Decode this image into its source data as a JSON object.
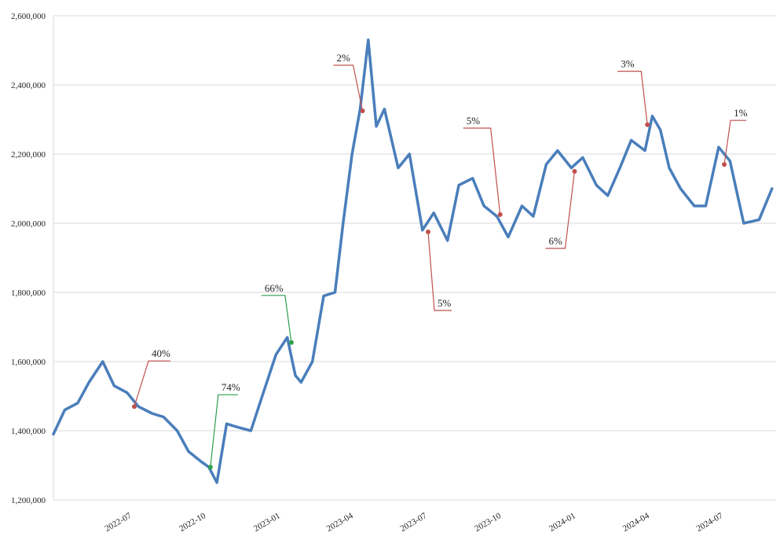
{
  "chart_data": {
    "type": "line",
    "title": "",
    "xlabel": "",
    "ylabel": "",
    "ylim": [
      1200000,
      2600000
    ],
    "y_ticks": [
      1200000,
      1400000,
      1600000,
      1800000,
      2000000,
      2200000,
      2400000,
      2600000
    ],
    "y_tick_labels": [
      "1,200,000",
      "1,400,000",
      "1,600,000",
      "1,800,000",
      "2,000,000",
      "2,200,000",
      "2,400,000",
      "2,600,000"
    ],
    "x_ticks": [
      "2022-07",
      "2022-10",
      "2023-01",
      "2023-04",
      "2023-07",
      "2023-10",
      "2024-01",
      "2024-04",
      "2024-07"
    ],
    "grid": true,
    "series_color": "#4a7ebb",
    "series": [
      {
        "x": [
          "2022-04-01",
          "2022-04-15",
          "2022-05-01",
          "2022-05-15",
          "2022-06-01",
          "2022-06-15",
          "2022-07-01",
          "2022-07-15",
          "2022-08-01",
          "2022-08-15",
          "2022-09-01",
          "2022-09-15",
          "2022-10-01",
          "2022-10-10",
          "2022-10-20",
          "2022-11-01",
          "2022-11-15",
          "2022-12-01",
          "2022-12-15",
          "2023-01-01",
          "2023-01-15",
          "2023-01-25",
          "2023-02-01",
          "2023-02-15",
          "2023-03-01",
          "2023-03-15",
          "2023-03-25",
          "2023-04-05",
          "2023-04-15",
          "2023-04-25",
          "2023-05-05",
          "2023-05-15",
          "2023-06-01",
          "2023-06-15",
          "2023-07-01",
          "2023-07-15",
          "2023-08-01",
          "2023-08-15",
          "2023-09-01",
          "2023-09-15",
          "2023-10-01",
          "2023-10-15",
          "2023-11-01",
          "2023-11-15",
          "2023-12-01",
          "2023-12-15",
          "2024-01-01",
          "2024-01-15",
          "2024-02-01",
          "2024-02-15",
          "2024-03-01",
          "2024-03-15",
          "2024-04-01",
          "2024-04-10",
          "2024-04-20",
          "2024-05-01",
          "2024-05-15",
          "2024-06-01",
          "2024-06-15",
          "2024-07-01",
          "2024-07-15",
          "2024-08-01",
          "2024-08-20",
          "2024-09-05"
        ],
        "values": [
          1390000,
          1460000,
          1480000,
          1540000,
          1600000,
          1530000,
          1510000,
          1470000,
          1450000,
          1440000,
          1400000,
          1340000,
          1310000,
          1295000,
          1250000,
          1420000,
          1410000,
          1400000,
          1500000,
          1620000,
          1670000,
          1560000,
          1540000,
          1600000,
          1790000,
          1800000,
          2000000,
          2200000,
          2330000,
          2530000,
          2280000,
          2330000,
          2160000,
          2200000,
          1980000,
          2030000,
          1950000,
          2110000,
          2130000,
          2050000,
          2020000,
          1960000,
          2050000,
          2020000,
          2170000,
          2210000,
          2160000,
          2190000,
          2110000,
          2080000,
          2160000,
          2240000,
          2210000,
          2310000,
          2270000,
          2160000,
          2100000,
          2050000,
          2050000,
          2220000,
          2180000,
          2000000,
          2010000,
          2100000
        ]
      }
    ],
    "annotations": [
      {
        "label": "40%",
        "x": "2022-07-10",
        "y": 1470000,
        "color": "#c0504d"
      },
      {
        "label": "74%",
        "x": "2022-10-12",
        "y": 1295000,
        "color": "#2e9e4f"
      },
      {
        "label": "66%",
        "x": "2023-01-20",
        "y": 1655000,
        "color": "#2e9e4f"
      },
      {
        "label": "2%",
        "x": "2023-04-18",
        "y": 2325000,
        "color": "#c0504d"
      },
      {
        "label": "5%",
        "x": "2023-07-08",
        "y": 1975000,
        "color": "#c0504d"
      },
      {
        "label": "5%",
        "x": "2023-10-05",
        "y": 2025000,
        "color": "#c0504d"
      },
      {
        "label": "6%",
        "x": "2024-01-05",
        "y": 2150000,
        "color": "#c0504d"
      },
      {
        "label": "3%",
        "x": "2024-04-04",
        "y": 2285000,
        "color": "#c0504d"
      },
      {
        "label": "1%",
        "x": "2024-07-08",
        "y": 2170000,
        "color": "#c0504d"
      }
    ]
  }
}
